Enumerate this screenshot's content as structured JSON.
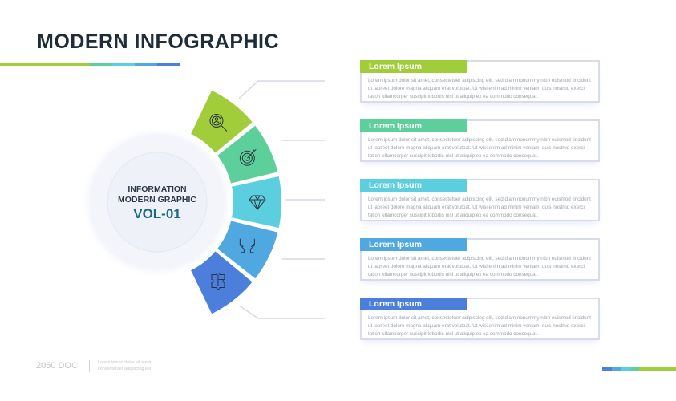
{
  "header": {
    "title": "MODERN INFOGRAPHIC"
  },
  "colors": {
    "green": "#a2cd3a",
    "mint": "#5ccf9b",
    "cyan": "#5bcfe0",
    "sky": "#4fa8e0",
    "blue": "#4b7fdb",
    "line": "#d7dce6"
  },
  "center": {
    "line1": "INFORMATION",
    "line2": "MODERN GRAPHIC",
    "line3": "VOL-01"
  },
  "segments": [
    {
      "icon": "search-user-icon",
      "color": "#a2cd3a"
    },
    {
      "icon": "target-icon",
      "color": "#5ccf9b"
    },
    {
      "icon": "diamond-icon",
      "color": "#5bcfe0"
    },
    {
      "icon": "hands-icon",
      "color": "#4fa8e0"
    },
    {
      "icon": "puzzle-icon",
      "color": "#4b7fdb"
    }
  ],
  "cards": [
    {
      "label": "Lorem Ipsum",
      "color": "#a2cd3a",
      "text": "Lorem ipsum dolor sit amet, consectetuer adipiscing elit, sed diam nonummy nibh euismod tincidunt ut laoreet dolore magna aliquam erat volutpat. Ut wisi enim ad minim veniam, quis nostrud exerci tation ullamcorper suscipit lobortis nisl ut aliquip ex ea commodo consequat. ."
    },
    {
      "label": "Lorem Ipsum",
      "color": "#5ccf9b",
      "text": "Lorem ipsum dolor sit amet, consectetuer adipiscing elit, sed diam nonummy nibh euismod tincidunt ut laoreet dolore magna aliquam erat volutpat. Ut wisi enim ad minim veniam, quis nostrud exerci tation ullamcorper suscipit lobortis nisl ut aliquip ex ea commodo consequat. ."
    },
    {
      "label": "Lorem Ipsum",
      "color": "#5bcfe0",
      "text": "Lorem ipsum dolor sit amet, consectetuer adipiscing elit, sed diam nonummy nibh euismod tincidunt ut laoreet dolore magna aliquam erat volutpat. Ut wisi enim ad minim veniam, quis nostrud exerci tation ullamcorper suscipit lobortis nisl ut aliquip ex ea commodo consequat. ."
    },
    {
      "label": "Lorem Ipsum",
      "color": "#4fa8e0",
      "text": "Lorem ipsum dolor sit amet, consectetuer adipiscing elit, sed diam nonummy nibh euismod tincidunt ut laoreet dolore magna aliquam erat volutpat. Ut wisi enim ad minim veniam, quis nostrud exerci tation ullamcorper suscipit lobortis nisl ut aliquip ex ea commodo consequat. ."
    },
    {
      "label": "Lorem Ipsum",
      "color": "#4b7fdb",
      "text": "Lorem ipsum dolor sit amet, consectetuer adipiscing elit, sed diam nonummy nibh euismod tincidunt ut laoreet dolore magna aliquam erat volutpat. Ut wisi enim ad minim veniam, quis nostrud exerci tation ullamcorper suscipit lobortis nisl ut aliquip ex ea commodo consequat. ."
    }
  ],
  "footer": {
    "doc": "2050 DOC",
    "line1": "Lorem ipsum dolor sit amet",
    "line2": "consectetuer adipiscing elit"
  }
}
